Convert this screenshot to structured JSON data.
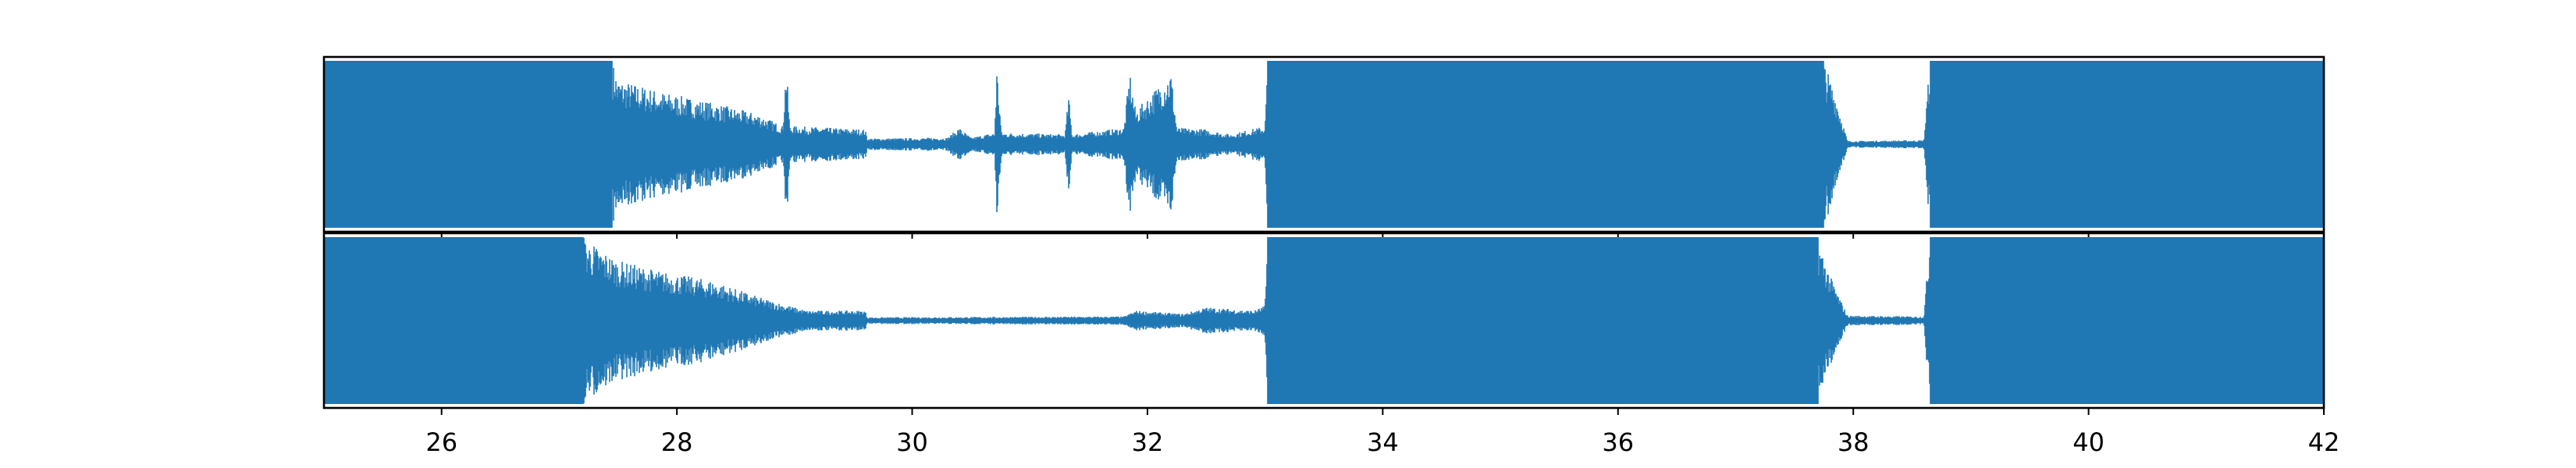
{
  "chart_data": {
    "type": "line",
    "title": "",
    "xlabel": "",
    "ylabel": "",
    "xlim": [
      25,
      42
    ],
    "ylim": [
      -1,
      1
    ],
    "x_ticks": [
      26,
      28,
      30,
      32,
      34,
      36,
      38,
      40,
      42
    ],
    "x_tick_labels": [
      "26",
      "28",
      "30",
      "32",
      "34",
      "36",
      "38",
      "40",
      "42"
    ],
    "grid": false,
    "legend": "none",
    "color": "#1f77b4",
    "series": [
      {
        "channel": 1,
        "envelope": [
          [
            25.0,
            1.0
          ],
          [
            27.45,
            1.0
          ],
          [
            27.5,
            0.78
          ],
          [
            27.9,
            0.62
          ],
          [
            28.3,
            0.5
          ],
          [
            28.7,
            0.36
          ],
          [
            28.9,
            0.22
          ],
          [
            28.93,
            0.98
          ],
          [
            28.96,
            0.22
          ],
          [
            29.6,
            0.18
          ],
          [
            29.62,
            0.07
          ],
          [
            30.3,
            0.08
          ],
          [
            30.4,
            0.2
          ],
          [
            30.5,
            0.08
          ],
          [
            30.7,
            0.14
          ],
          [
            30.72,
            0.95
          ],
          [
            30.76,
            0.14
          ],
          [
            31.3,
            0.12
          ],
          [
            31.33,
            0.6
          ],
          [
            31.36,
            0.12
          ],
          [
            31.8,
            0.2
          ],
          [
            31.85,
            0.88
          ],
          [
            31.9,
            0.4
          ],
          [
            32.2,
            0.88
          ],
          [
            32.25,
            0.2
          ],
          [
            32.5,
            0.18
          ],
          [
            32.7,
            0.12
          ],
          [
            33.0,
            0.22
          ],
          [
            33.02,
            1.0
          ],
          [
            37.75,
            1.0
          ],
          [
            37.85,
            0.6
          ],
          [
            37.95,
            0.04
          ],
          [
            38.6,
            0.05
          ],
          [
            38.65,
            1.0
          ],
          [
            42.0,
            1.0
          ]
        ]
      },
      {
        "channel": 2,
        "envelope": [
          [
            25.0,
            1.0
          ],
          [
            27.2,
            1.0
          ],
          [
            27.5,
            0.72
          ],
          [
            27.9,
            0.58
          ],
          [
            28.3,
            0.48
          ],
          [
            28.7,
            0.28
          ],
          [
            29.1,
            0.12
          ],
          [
            29.6,
            0.12
          ],
          [
            29.62,
            0.04
          ],
          [
            31.8,
            0.05
          ],
          [
            31.9,
            0.12
          ],
          [
            32.3,
            0.08
          ],
          [
            32.5,
            0.16
          ],
          [
            32.9,
            0.12
          ],
          [
            33.0,
            0.18
          ],
          [
            33.02,
            1.0
          ],
          [
            37.7,
            1.0
          ],
          [
            37.8,
            0.55
          ],
          [
            37.95,
            0.06
          ],
          [
            38.6,
            0.05
          ],
          [
            38.65,
            1.0
          ],
          [
            42.0,
            1.0
          ]
        ]
      }
    ]
  }
}
